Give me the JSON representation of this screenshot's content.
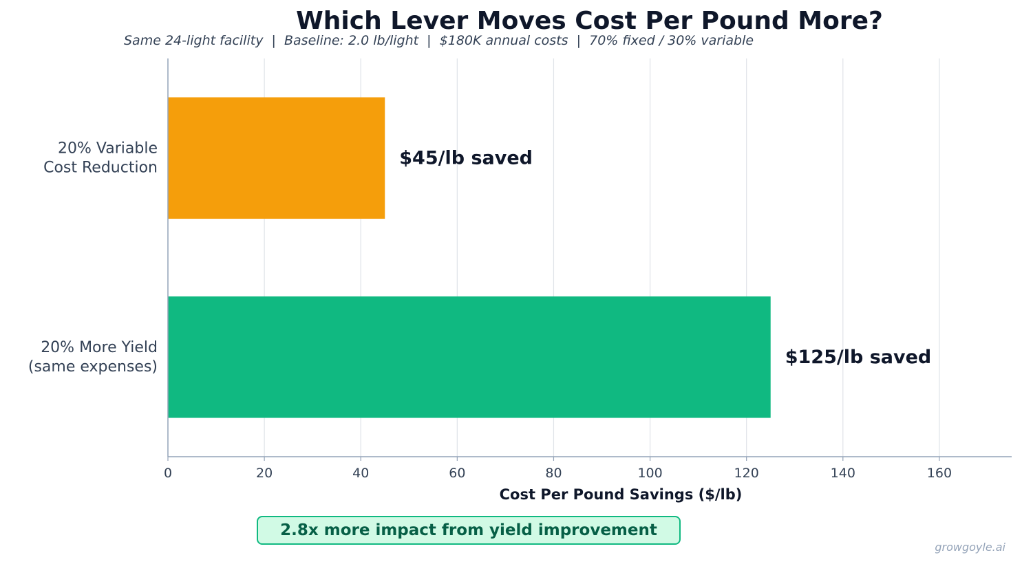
{
  "chart_data": {
    "type": "bar",
    "orientation": "horizontal",
    "title": "Which Lever Moves Cost Per Pound More?",
    "subtitle": "Same 24-light facility  |  Baseline: 2.0 lb/light  |  $180K annual costs  |  70% fixed / 30% variable",
    "categories": [
      [
        "20% Variable",
        "Cost Reduction"
      ],
      [
        "20% More Yield",
        "(same expenses)"
      ]
    ],
    "values": [
      45,
      125
    ],
    "data_labels": [
      "$45/lb saved",
      "$125/lb saved"
    ],
    "colors": [
      "#f59e0b",
      "#10b981"
    ],
    "xlabel": "Cost Per Pound Savings ($/lb)",
    "ylabel": "",
    "xlim": [
      0,
      175
    ],
    "xticks": [
      0,
      20,
      40,
      60,
      80,
      100,
      120,
      140,
      160
    ],
    "grid": "vertical",
    "annotation": "2.8x more impact from yield improvement"
  },
  "watermark": "growgoyle.ai"
}
